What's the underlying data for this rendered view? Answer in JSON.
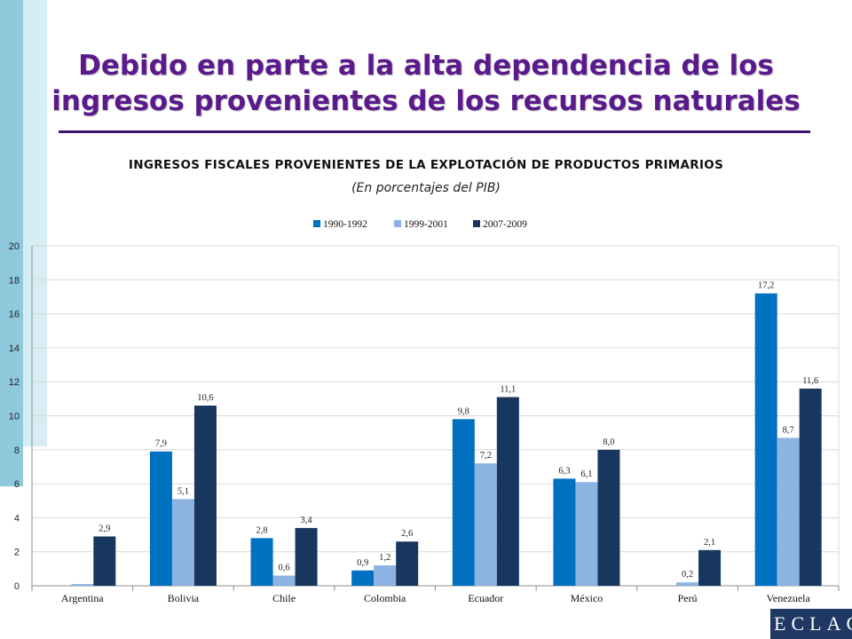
{
  "slide": {
    "title_line1": "Debido en parte a la alta dependencia de los",
    "title_line2": "ingresos provenientes de los recursos naturales",
    "logo_text": "ECLAC"
  },
  "chart_data": {
    "type": "bar",
    "title": "INGRESOS FISCALES PROVENIENTES DE LA EXPLOTACIÓN DE PRODUCTOS PRIMARIOS",
    "subtitle": "(En porcentajes del PIB)",
    "categories": [
      "Argentina",
      "Bolivia",
      "Chile",
      "Colombia",
      "Ecuador",
      "México",
      "Perú",
      "Venezuela"
    ],
    "series": [
      {
        "name": "1990-1992",
        "color": "#0070c0",
        "values": [
          null,
          7.9,
          2.8,
          0.9,
          9.8,
          6.3,
          null,
          17.2
        ],
        "labels": [
          "",
          "7,9",
          "2,8",
          "0,9",
          "9,8",
          "6,3",
          "",
          "17,2"
        ]
      },
      {
        "name": "1999-2001",
        "color": "#8db3e2",
        "values": [
          0.1,
          5.1,
          0.6,
          1.2,
          7.2,
          6.1,
          0.2,
          8.7
        ],
        "labels": [
          "",
          "5,1",
          "0,6",
          "1,2",
          "7,2",
          "6,1",
          "0,2",
          "8,7"
        ]
      },
      {
        "name": "2007-2009",
        "color": "#17375e",
        "values": [
          2.9,
          10.6,
          3.4,
          2.6,
          11.1,
          8.0,
          2.1,
          11.6
        ],
        "labels": [
          "2,9",
          "10,6",
          "3,4",
          "2,6",
          "11,1",
          "8,0",
          "2,1",
          "11,6"
        ]
      }
    ],
    "ylim": [
      0,
      20
    ],
    "yticks": [
      "0",
      "2",
      "4",
      "6",
      "8",
      "10",
      "12",
      "14",
      "16",
      "18",
      "20"
    ],
    "grid": true,
    "legend": "top"
  }
}
